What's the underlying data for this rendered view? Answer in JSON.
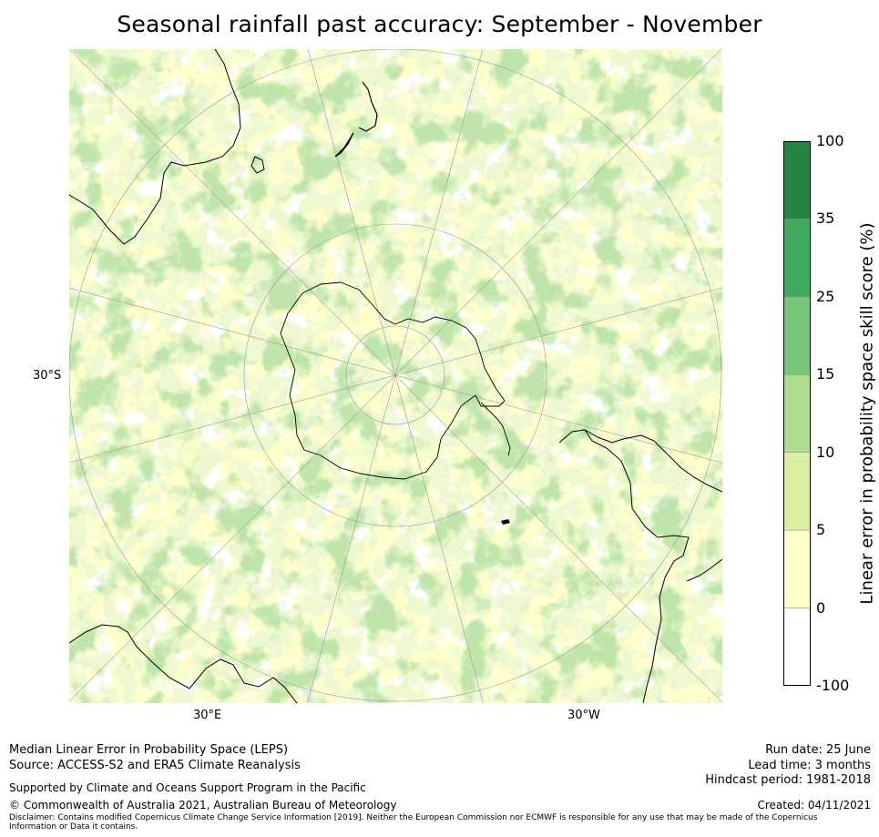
{
  "title": "Seasonal rainfall past accuracy: September - November",
  "map": {
    "lat_label": "30°S",
    "lon_labels": [
      "30°E",
      "30°W"
    ],
    "projection": "south-polar stereographic"
  },
  "legend": {
    "label": "Linear error in probability space skill score (%)",
    "ticks": [
      "-100",
      "0",
      "5",
      "10",
      "15",
      "25",
      "35",
      "100"
    ],
    "bins": [
      {
        "from": -100,
        "to": 0,
        "color": "#ffffff"
      },
      {
        "from": 0,
        "to": 5,
        "color": "#ffffcc"
      },
      {
        "from": 5,
        "to": 10,
        "color": "#d9f0a3"
      },
      {
        "from": 10,
        "to": 15,
        "color": "#addd8e"
      },
      {
        "from": 15,
        "to": 25,
        "color": "#78c679"
      },
      {
        "from": 25,
        "to": 35,
        "color": "#41ab5d"
      },
      {
        "from": 35,
        "to": 100,
        "color": "#238443"
      }
    ]
  },
  "footer": {
    "line1": "Median Linear Error in Probability Space (LEPS)",
    "line2": "Source: ACCESS-S2 and ERA5 Climate Reanalysis",
    "support": "Supported by Climate and Oceans Support Program in the Pacific",
    "copyright": "© Commonwealth of Australia 2021, Australian Bureau of Meteorology",
    "disclaimer": "Disclaimer: Contains modified Copernicus Climate Change Service Information [2019]. Neither the European Commission nor ECMWF is responsible for any use that may be made of the Copernicus Information or Data it contains.",
    "run_date": "Run date: 25 June",
    "lead_time": "Lead time: 3 months",
    "hindcast": "Hindcast period: 1981-2018",
    "created": "Created: 04/11/2021"
  }
}
